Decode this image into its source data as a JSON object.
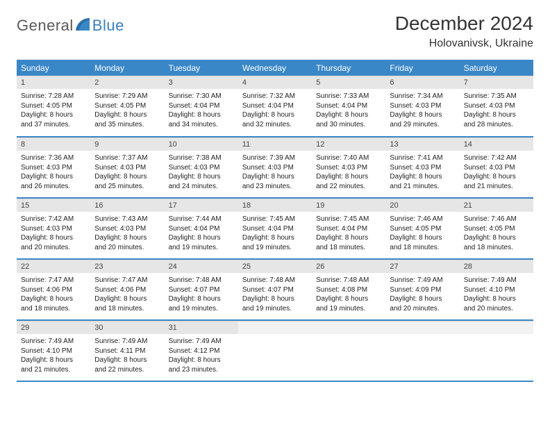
{
  "logo": {
    "general": "General",
    "blue": "Blue"
  },
  "title": "December 2024",
  "location": "Holovanivsk, Ukraine",
  "colors": {
    "header_bg": "#3a87c8",
    "header_text": "#ffffff",
    "daynum_bg": "#e6e6e6",
    "daynum_empty_bg": "#f2f2f2",
    "row_border": "#3a87c8",
    "logo_gray": "#595959",
    "logo_blue": "#3a7fbf"
  },
  "day_headers": [
    "Sunday",
    "Monday",
    "Tuesday",
    "Wednesday",
    "Thursday",
    "Friday",
    "Saturday"
  ],
  "weeks": [
    [
      {
        "num": "1",
        "sunrise": "7:28 AM",
        "sunset": "4:05 PM",
        "daylight": "8 hours and 37 minutes."
      },
      {
        "num": "2",
        "sunrise": "7:29 AM",
        "sunset": "4:05 PM",
        "daylight": "8 hours and 35 minutes."
      },
      {
        "num": "3",
        "sunrise": "7:30 AM",
        "sunset": "4:04 PM",
        "daylight": "8 hours and 34 minutes."
      },
      {
        "num": "4",
        "sunrise": "7:32 AM",
        "sunset": "4:04 PM",
        "daylight": "8 hours and 32 minutes."
      },
      {
        "num": "5",
        "sunrise": "7:33 AM",
        "sunset": "4:04 PM",
        "daylight": "8 hours and 30 minutes."
      },
      {
        "num": "6",
        "sunrise": "7:34 AM",
        "sunset": "4:03 PM",
        "daylight": "8 hours and 29 minutes."
      },
      {
        "num": "7",
        "sunrise": "7:35 AM",
        "sunset": "4:03 PM",
        "daylight": "8 hours and 28 minutes."
      }
    ],
    [
      {
        "num": "8",
        "sunrise": "7:36 AM",
        "sunset": "4:03 PM",
        "daylight": "8 hours and 26 minutes."
      },
      {
        "num": "9",
        "sunrise": "7:37 AM",
        "sunset": "4:03 PM",
        "daylight": "8 hours and 25 minutes."
      },
      {
        "num": "10",
        "sunrise": "7:38 AM",
        "sunset": "4:03 PM",
        "daylight": "8 hours and 24 minutes."
      },
      {
        "num": "11",
        "sunrise": "7:39 AM",
        "sunset": "4:03 PM",
        "daylight": "8 hours and 23 minutes."
      },
      {
        "num": "12",
        "sunrise": "7:40 AM",
        "sunset": "4:03 PM",
        "daylight": "8 hours and 22 minutes."
      },
      {
        "num": "13",
        "sunrise": "7:41 AM",
        "sunset": "4:03 PM",
        "daylight": "8 hours and 21 minutes."
      },
      {
        "num": "14",
        "sunrise": "7:42 AM",
        "sunset": "4:03 PM",
        "daylight": "8 hours and 21 minutes."
      }
    ],
    [
      {
        "num": "15",
        "sunrise": "7:42 AM",
        "sunset": "4:03 PM",
        "daylight": "8 hours and 20 minutes."
      },
      {
        "num": "16",
        "sunrise": "7:43 AM",
        "sunset": "4:03 PM",
        "daylight": "8 hours and 20 minutes."
      },
      {
        "num": "17",
        "sunrise": "7:44 AM",
        "sunset": "4:04 PM",
        "daylight": "8 hours and 19 minutes."
      },
      {
        "num": "18",
        "sunrise": "7:45 AM",
        "sunset": "4:04 PM",
        "daylight": "8 hours and 19 minutes."
      },
      {
        "num": "19",
        "sunrise": "7:45 AM",
        "sunset": "4:04 PM",
        "daylight": "8 hours and 18 minutes."
      },
      {
        "num": "20",
        "sunrise": "7:46 AM",
        "sunset": "4:05 PM",
        "daylight": "8 hours and 18 minutes."
      },
      {
        "num": "21",
        "sunrise": "7:46 AM",
        "sunset": "4:05 PM",
        "daylight": "8 hours and 18 minutes."
      }
    ],
    [
      {
        "num": "22",
        "sunrise": "7:47 AM",
        "sunset": "4:06 PM",
        "daylight": "8 hours and 18 minutes."
      },
      {
        "num": "23",
        "sunrise": "7:47 AM",
        "sunset": "4:06 PM",
        "daylight": "8 hours and 18 minutes."
      },
      {
        "num": "24",
        "sunrise": "7:48 AM",
        "sunset": "4:07 PM",
        "daylight": "8 hours and 19 minutes."
      },
      {
        "num": "25",
        "sunrise": "7:48 AM",
        "sunset": "4:07 PM",
        "daylight": "8 hours and 19 minutes."
      },
      {
        "num": "26",
        "sunrise": "7:48 AM",
        "sunset": "4:08 PM",
        "daylight": "8 hours and 19 minutes."
      },
      {
        "num": "27",
        "sunrise": "7:49 AM",
        "sunset": "4:09 PM",
        "daylight": "8 hours and 20 minutes."
      },
      {
        "num": "28",
        "sunrise": "7:49 AM",
        "sunset": "4:10 PM",
        "daylight": "8 hours and 20 minutes."
      }
    ],
    [
      {
        "num": "29",
        "sunrise": "7:49 AM",
        "sunset": "4:10 PM",
        "daylight": "8 hours and 21 minutes."
      },
      {
        "num": "30",
        "sunrise": "7:49 AM",
        "sunset": "4:11 PM",
        "daylight": "8 hours and 22 minutes."
      },
      {
        "num": "31",
        "sunrise": "7:49 AM",
        "sunset": "4:12 PM",
        "daylight": "8 hours and 23 minutes."
      },
      {
        "empty": true
      },
      {
        "empty": true
      },
      {
        "empty": true
      },
      {
        "empty": true
      }
    ]
  ],
  "labels": {
    "sunrise": "Sunrise: ",
    "sunset": "Sunset: ",
    "daylight": "Daylight: "
  }
}
